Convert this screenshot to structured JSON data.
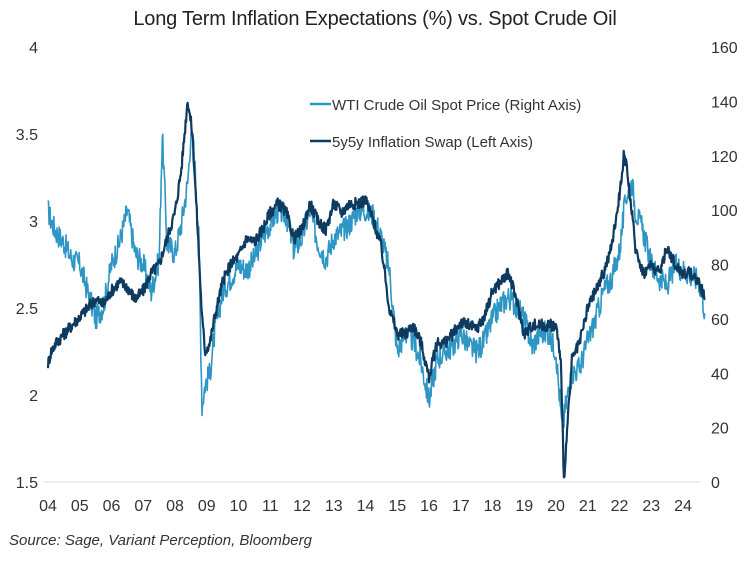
{
  "chart_data": {
    "type": "line",
    "title": "Long Term Inflation Expectations (%) vs. Spot Crude Oil",
    "xlabel": "",
    "ylabel_left": "",
    "ylabel_right": "",
    "x_tick_labels": [
      "04",
      "05",
      "06",
      "07",
      "08",
      "09",
      "10",
      "11",
      "12",
      "13",
      "14",
      "15",
      "16",
      "17",
      "18",
      "19",
      "20",
      "21",
      "22",
      "23",
      "24"
    ],
    "x_range": [
      2004.0,
      2024.7
    ],
    "y_left": {
      "ticks": [
        "4",
        "3.5",
        "3",
        "2.5",
        "2",
        "1.5"
      ],
      "tick_values": [
        4,
        3.5,
        3,
        2.5,
        2,
        1.5
      ],
      "range": [
        1.5,
        4
      ]
    },
    "y_right": {
      "ticks": [
        "160",
        "140",
        "120",
        "100",
        "80",
        "60",
        "40",
        "20",
        "0"
      ],
      "tick_values": [
        160,
        140,
        120,
        100,
        80,
        60,
        40,
        20,
        0
      ],
      "range": [
        0,
        160
      ]
    },
    "grid": false,
    "legend": {
      "placement": "top-center-right",
      "entries": [
        "WTI Crude Oil Spot Price (Right Axis)",
        "5y5y Inflation Swap (Left Axis)"
      ]
    },
    "colors": {
      "wti": "#2e96c4",
      "swap": "#0f3a5f",
      "baseline": "#e6e6e6"
    },
    "series": [
      {
        "name": "WTI Crude Oil Spot Price (Right Axis)",
        "axis": "right",
        "color": "#2e96c4",
        "x": [
          2004.0,
          2004.1,
          2004.25,
          2004.5,
          2004.75,
          2005.0,
          2005.25,
          2005.5,
          2005.75,
          2006.0,
          2006.25,
          2006.5,
          2006.75,
          2007.0,
          2007.25,
          2007.5,
          2007.6,
          2007.75,
          2008.0,
          2008.2,
          2008.4,
          2008.5,
          2008.6,
          2008.75,
          2008.85,
          2008.95,
          2009.1,
          2009.25,
          2009.5,
          2009.75,
          2010.0,
          2010.25,
          2010.5,
          2010.75,
          2011.0,
          2011.25,
          2011.5,
          2011.75,
          2012.0,
          2012.25,
          2012.5,
          2012.75,
          2013.0,
          2013.25,
          2013.5,
          2013.75,
          2014.0,
          2014.25,
          2014.5,
          2014.75,
          2015.0,
          2015.25,
          2015.5,
          2015.75,
          2016.0,
          2016.1,
          2016.25,
          2016.5,
          2016.75,
          2017.0,
          2017.25,
          2017.5,
          2017.75,
          2018.0,
          2018.25,
          2018.5,
          2018.75,
          2019.0,
          2019.25,
          2019.5,
          2019.75,
          2020.0,
          2020.2,
          2020.3,
          2020.5,
          2020.75,
          2021.0,
          2021.25,
          2021.5,
          2021.75,
          2022.0,
          2022.2,
          2022.4,
          2022.5,
          2022.75,
          2023.0,
          2023.25,
          2023.5,
          2023.75,
          2024.0,
          2024.25,
          2024.5,
          2024.7
        ],
        "values": [
          100,
          96,
          92,
          88,
          82,
          80,
          70,
          60,
          65,
          80,
          88,
          100,
          84,
          80,
          70,
          82,
          128,
          88,
          84,
          95,
          110,
          128,
          122,
          90,
          28,
          36,
          40,
          55,
          70,
          75,
          80,
          78,
          82,
          90,
          95,
          100,
          98,
          85,
          90,
          100,
          88,
          82,
          90,
          92,
          95,
          100,
          100,
          98,
          90,
          78,
          48,
          55,
          52,
          44,
          30,
          36,
          45,
          48,
          50,
          55,
          50,
          48,
          52,
          60,
          65,
          68,
          65,
          60,
          50,
          55,
          55,
          48,
          18,
          28,
          40,
          42,
          52,
          60,
          70,
          75,
          85,
          105,
          110,
          100,
          92,
          80,
          75,
          72,
          80,
          78,
          76,
          74,
          62
        ]
      },
      {
        "name": "5y5y Inflation Swap (Left Axis)",
        "axis": "left",
        "color": "#0f3a5f",
        "x": [
          2004.0,
          2004.1,
          2004.25,
          2004.5,
          2004.75,
          2005.0,
          2005.25,
          2005.5,
          2005.75,
          2006.0,
          2006.25,
          2006.5,
          2006.75,
          2007.0,
          2007.25,
          2007.5,
          2007.75,
          2008.0,
          2008.2,
          2008.4,
          2008.55,
          2008.7,
          2008.85,
          2008.95,
          2009.1,
          2009.25,
          2009.5,
          2009.75,
          2010.0,
          2010.25,
          2010.5,
          2010.75,
          2011.0,
          2011.25,
          2011.5,
          2011.75,
          2012.0,
          2012.25,
          2012.5,
          2012.75,
          2013.0,
          2013.25,
          2013.5,
          2013.75,
          2014.0,
          2014.25,
          2014.5,
          2014.75,
          2015.0,
          2015.25,
          2015.5,
          2015.75,
          2016.0,
          2016.25,
          2016.5,
          2016.75,
          2017.0,
          2017.25,
          2017.5,
          2017.75,
          2018.0,
          2018.25,
          2018.5,
          2018.75,
          2019.0,
          2019.25,
          2019.5,
          2019.75,
          2020.0,
          2020.15,
          2020.25,
          2020.5,
          2020.75,
          2021.0,
          2021.25,
          2021.5,
          2021.75,
          2022.0,
          2022.15,
          2022.3,
          2022.5,
          2022.75,
          2023.0,
          2023.25,
          2023.5,
          2023.75,
          2024.0,
          2024.25,
          2024.5,
          2024.7
        ],
        "values": [
          2.18,
          2.25,
          2.3,
          2.35,
          2.4,
          2.45,
          2.5,
          2.55,
          2.52,
          2.6,
          2.65,
          2.62,
          2.55,
          2.6,
          2.7,
          2.75,
          2.9,
          3.05,
          3.3,
          3.7,
          3.5,
          3.0,
          2.45,
          2.25,
          2.3,
          2.45,
          2.65,
          2.75,
          2.8,
          2.9,
          2.88,
          2.95,
          3.05,
          3.1,
          3.05,
          2.9,
          2.95,
          3.1,
          3.0,
          2.95,
          3.1,
          3.05,
          3.1,
          3.1,
          3.12,
          3.0,
          2.85,
          2.5,
          2.35,
          2.35,
          2.4,
          2.3,
          2.1,
          2.3,
          2.3,
          2.35,
          2.42,
          2.4,
          2.38,
          2.45,
          2.6,
          2.65,
          2.7,
          2.55,
          2.35,
          2.4,
          2.4,
          2.4,
          2.4,
          2.2,
          1.52,
          2.2,
          2.3,
          2.5,
          2.6,
          2.7,
          2.85,
          3.15,
          3.4,
          3.2,
          2.85,
          2.7,
          2.75,
          2.7,
          2.85,
          2.75,
          2.7,
          2.7,
          2.65,
          2.55
        ]
      }
    ]
  },
  "source_note": "Source: Sage, Variant Perception, Bloomberg"
}
